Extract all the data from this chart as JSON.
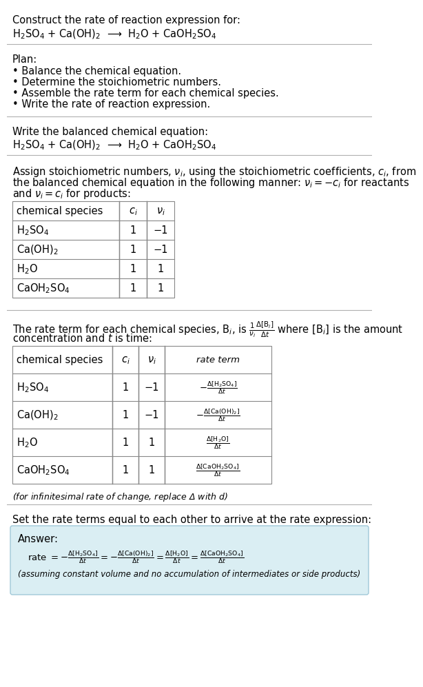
{
  "bg_color": "#ffffff",
  "text_color": "#000000",
  "title_text": "Construct the rate of reaction expression for:",
  "reaction_eq": "H$_2$SO$_4$ + Ca(OH)$_2$  ⟶  H$_2$O + CaOH$_2$SO$_4$",
  "plan_title": "Plan:",
  "plan_items": [
    "• Balance the chemical equation.",
    "• Determine the stoichiometric numbers.",
    "• Assemble the rate term for each chemical species.",
    "• Write the rate of reaction expression."
  ],
  "balanced_title": "Write the balanced chemical equation:",
  "balanced_eq": "H$_2$SO$_4$ + Ca(OH)$_2$  ⟶  H$_2$O + CaOH$_2$SO$_4$",
  "assign_line1": "Assign stoichiometric numbers, $\\nu_i$, using the stoichiometric coefficients, $c_i$, from",
  "assign_line2": "the balanced chemical equation in the following manner: $\\nu_i = -c_i$ for reactants",
  "assign_line3": "and $\\nu_i = c_i$ for products:",
  "table1_headers": [
    "chemical species",
    "$c_i$",
    "$\\nu_i$"
  ],
  "table1_rows": [
    [
      "H$_2$SO$_4$",
      "1",
      "−1"
    ],
    [
      "Ca(OH)$_2$",
      "1",
      "−1"
    ],
    [
      "H$_2$O",
      "1",
      "1"
    ],
    [
      "CaOH$_2$SO$_4$",
      "1",
      "1"
    ]
  ],
  "rate_line1": "The rate term for each chemical species, B$_i$, is $\\frac{1}{\\nu_i}\\frac{\\Delta[\\mathrm{B}_i]}{\\Delta t}$ where [B$_i$] is the amount",
  "rate_line2": "concentration and $t$ is time:",
  "table2_headers": [
    "chemical species",
    "$c_i$",
    "$\\nu_i$",
    "rate term"
  ],
  "table2_rows": [
    [
      "H$_2$SO$_4$",
      "1",
      "−1",
      "$-\\frac{\\Delta[\\mathrm{H_2SO_4}]}{\\Delta t}$"
    ],
    [
      "Ca(OH)$_2$",
      "1",
      "−1",
      "$-\\frac{\\Delta[\\mathrm{Ca(OH)_2}]}{\\Delta t}$"
    ],
    [
      "H$_2$O",
      "1",
      "1",
      "$\\frac{\\Delta[\\mathrm{H_2O}]}{\\Delta t}$"
    ],
    [
      "CaOH$_2$SO$_4$",
      "1",
      "1",
      "$\\frac{\\Delta[\\mathrm{CaOH_2SO_4}]}{\\Delta t}$"
    ]
  ],
  "infinitesimal_note": "(for infinitesimal rate of change, replace Δ with $d$)",
  "set_rate_text": "Set the rate terms equal to each other to arrive at the rate expression:",
  "answer_box_color": "#daeef3",
  "answer_border_color": "#a0c8d8",
  "answer_label": "Answer:",
  "rate_expression": "rate $= -\\frac{\\Delta[\\mathrm{H_2SO_4}]}{\\Delta t} = -\\frac{\\Delta[\\mathrm{Ca(OH)_2}]}{\\Delta t} = \\frac{\\Delta[\\mathrm{H_2O}]}{\\Delta t} = \\frac{\\Delta[\\mathrm{CaOH_2SO_4}]}{\\Delta t}$",
  "assumption_note": "(assuming constant volume and no accumulation of intermediates or side products)"
}
